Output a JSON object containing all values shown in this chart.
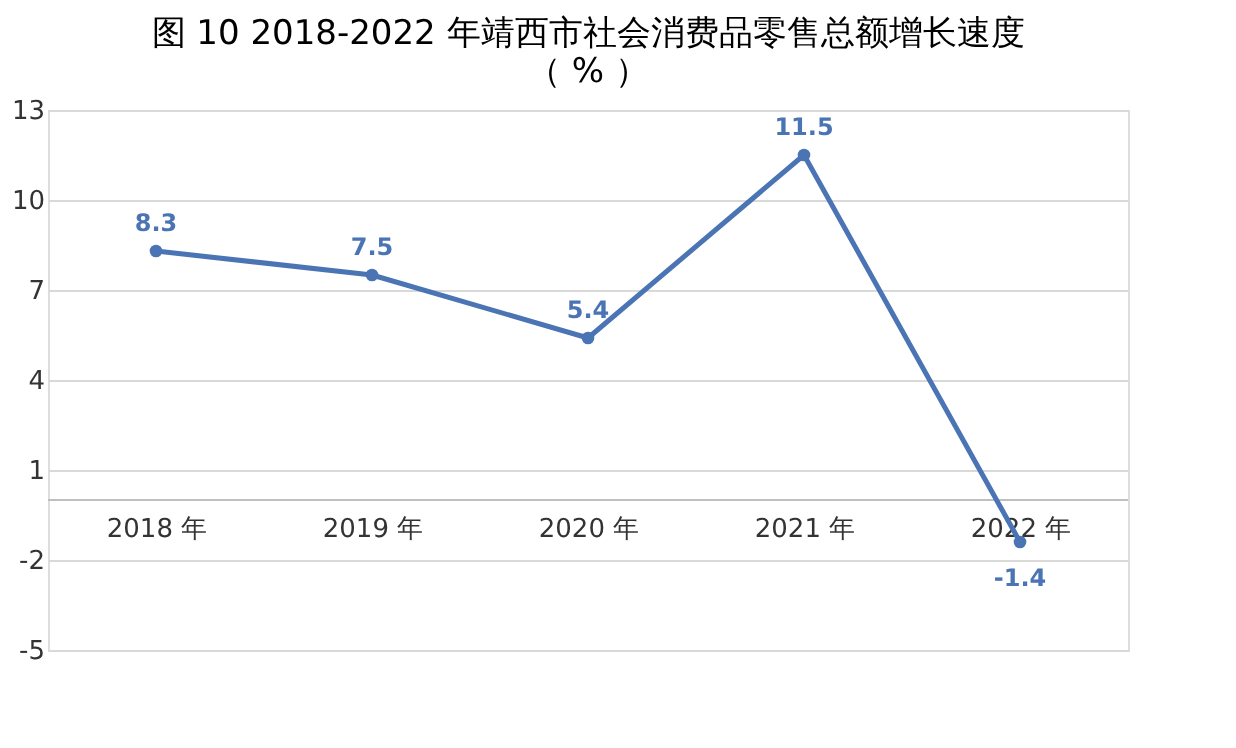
{
  "chart_data": {
    "type": "line",
    "title": "图 10  2018-2022 年靖西市社会消费品零售总额增长速度（ % ）",
    "categories": [
      "2018 年",
      "2019 年",
      "2020 年",
      "2021 年",
      "2022 年"
    ],
    "series": [
      {
        "color": "#4a74b4",
        "values": [
          8.3,
          7.5,
          5.4,
          11.5,
          -1.4
        ]
      }
    ],
    "ylim": [
      -5,
      13
    ],
    "yticks": [
      -5,
      -2,
      1,
      4,
      7,
      10,
      13
    ],
    "grid": "y",
    "marker": "circle",
    "line_style": "solid",
    "data_labels": true
  }
}
